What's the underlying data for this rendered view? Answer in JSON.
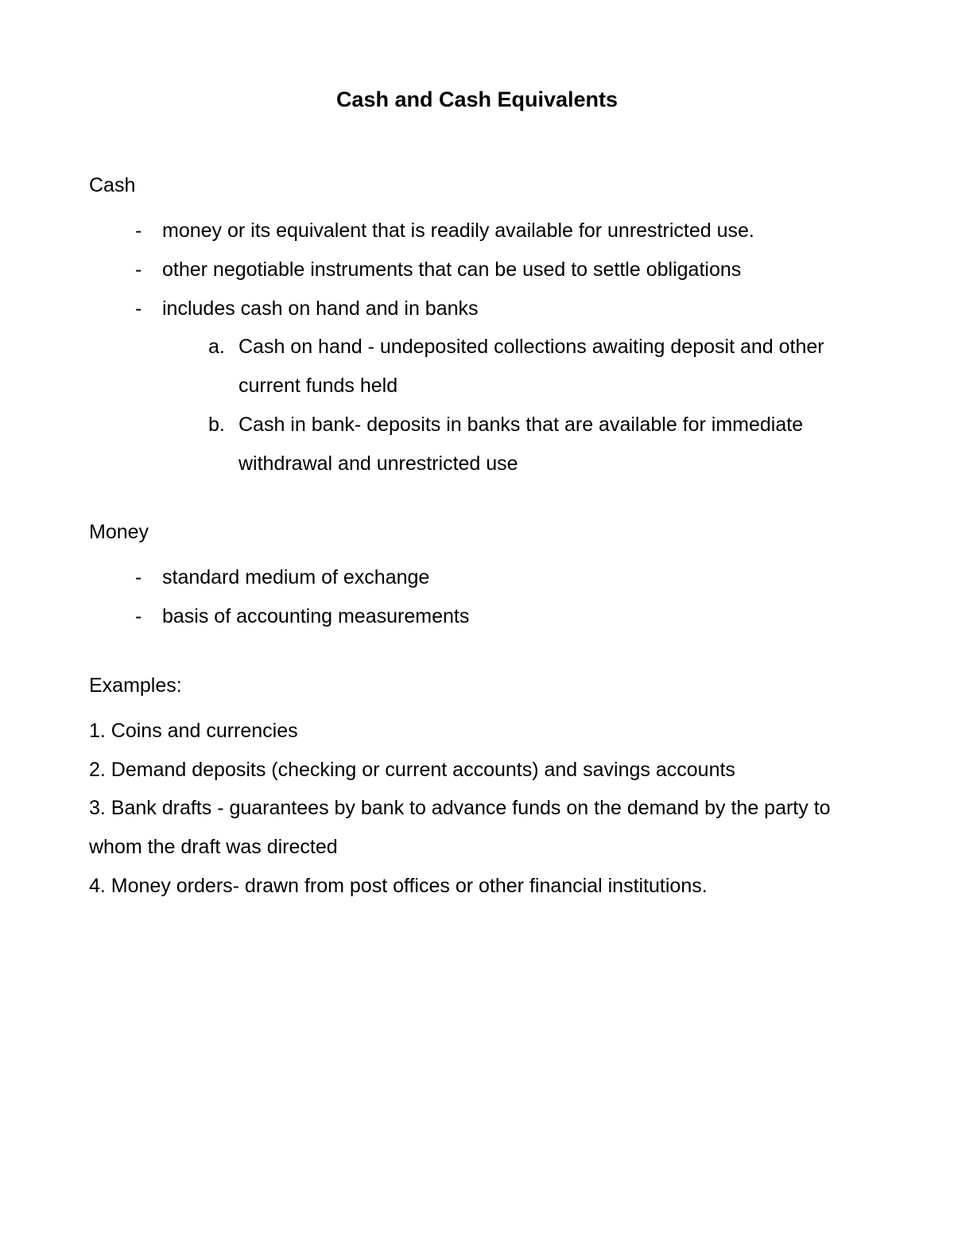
{
  "document": {
    "title": "Cash and Cash Equivalents",
    "background_color": "#ffffff",
    "text_color": "#000000",
    "title_fontsize": 27,
    "body_fontsize": 25,
    "line_height": 1.95,
    "sections": {
      "cash": {
        "heading": "Cash",
        "bullets": [
          "money or its equivalent that is readily available for unrestricted use.",
          "other negotiable instruments that can be used to settle obligations",
          "includes cash on hand and in banks"
        ],
        "sub_items": [
          {
            "marker": "a.",
            "text": "Cash on hand - undeposited collections awaiting deposit and other current funds held"
          },
          {
            "marker": "b.",
            "text": "Cash in bank- deposits in banks that are available for immediate withdrawal and unrestricted use"
          }
        ]
      },
      "money": {
        "heading": "Money",
        "bullets": [
          "standard medium of exchange",
          "basis of accounting measurements"
        ]
      },
      "examples": {
        "heading": "Examples:",
        "items": [
          "1. Coins and currencies",
          "2. Demand deposits (checking or current accounts) and savings accounts",
          "3. Bank drafts - guarantees by bank to advance funds on the demand by the party to whom the draft was directed",
          "4. Money orders- drawn from post offices or other financial institutions."
        ]
      }
    }
  }
}
